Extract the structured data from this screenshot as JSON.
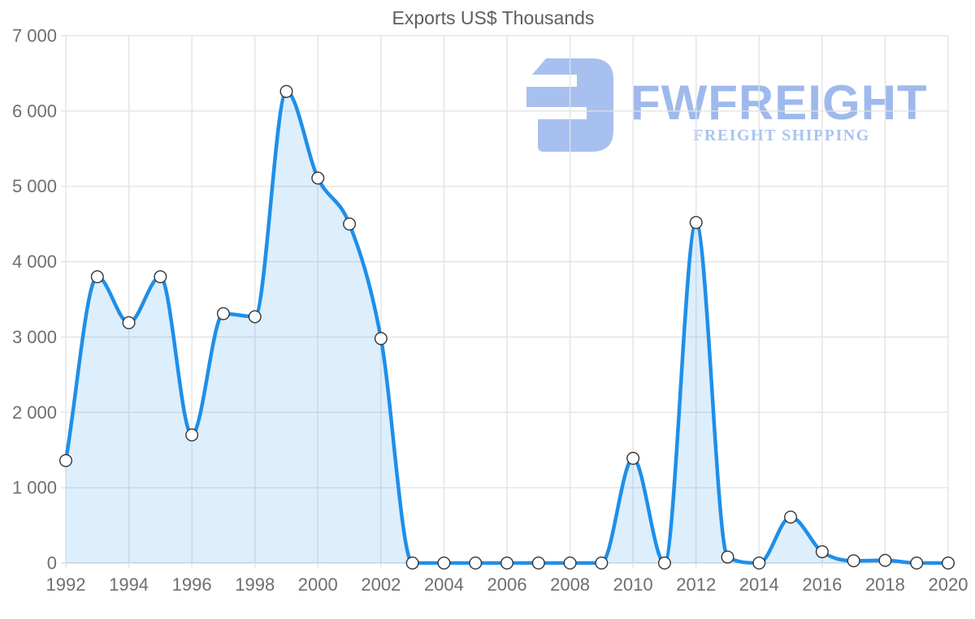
{
  "title": "Exports US$ Thousands",
  "watermark": {
    "brand": "FWFREIGHT",
    "tagline": "FREIGHT SHIPPING",
    "glyph": "fwfreight-logo-mark",
    "glyph_color": "#a7c0ef",
    "brand_color": "#9fb9ed",
    "tagline_color": "#a9c4f1"
  },
  "colors": {
    "line": "#1e8fe9",
    "area_fill": "rgba(30,143,233,0.15)",
    "grid": "#e2e2e2",
    "zero_line": "#d2d2d2",
    "axis_text": "#6f6f6f",
    "title_text": "#5e5e5e",
    "marker_fill": "#ffffff",
    "marker_stroke": "#333333"
  },
  "chart_data": {
    "type": "area",
    "title": "Exports US$ Thousands",
    "xlabel": "",
    "ylabel": "",
    "x": [
      1992,
      1993,
      1994,
      1995,
      1996,
      1997,
      1998,
      1999,
      2000,
      2001,
      2002,
      2003,
      2004,
      2005,
      2006,
      2007,
      2008,
      2009,
      2010,
      2011,
      2012,
      2013,
      2014,
      2015,
      2016,
      2017,
      2018,
      2019,
      2020
    ],
    "values": [
      1360,
      3800,
      3190,
      3800,
      1700,
      3310,
      3270,
      6260,
      5110,
      4500,
      2980,
      0,
      0,
      0,
      0,
      0,
      0,
      0,
      1390,
      0,
      4520,
      80,
      0,
      610,
      150,
      30,
      35,
      0,
      0
    ],
    "series_name": "Exports US$ Thousands",
    "xlim": [
      1992,
      2020
    ],
    "ylim": [
      0,
      7000
    ],
    "xticks": [
      1992,
      1994,
      1996,
      1998,
      2000,
      2002,
      2004,
      2006,
      2008,
      2010,
      2012,
      2014,
      2016,
      2018,
      2020
    ],
    "xtick_labels": [
      "1992",
      "1994",
      "1996",
      "1998",
      "2000",
      "2002",
      "2004",
      "2006",
      "2008",
      "2010",
      "2012",
      "2014",
      "2016",
      "2018",
      "2020"
    ],
    "yticks": [
      0,
      1000,
      2000,
      3000,
      4000,
      5000,
      6000,
      7000
    ],
    "ytick_labels": [
      "0",
      "1 000",
      "2 000",
      "3 000",
      "4 000",
      "5 000",
      "6 000",
      "7 000"
    ],
    "grid": true,
    "legend": false,
    "line_smoothing": "monotone",
    "markers": "circle"
  }
}
